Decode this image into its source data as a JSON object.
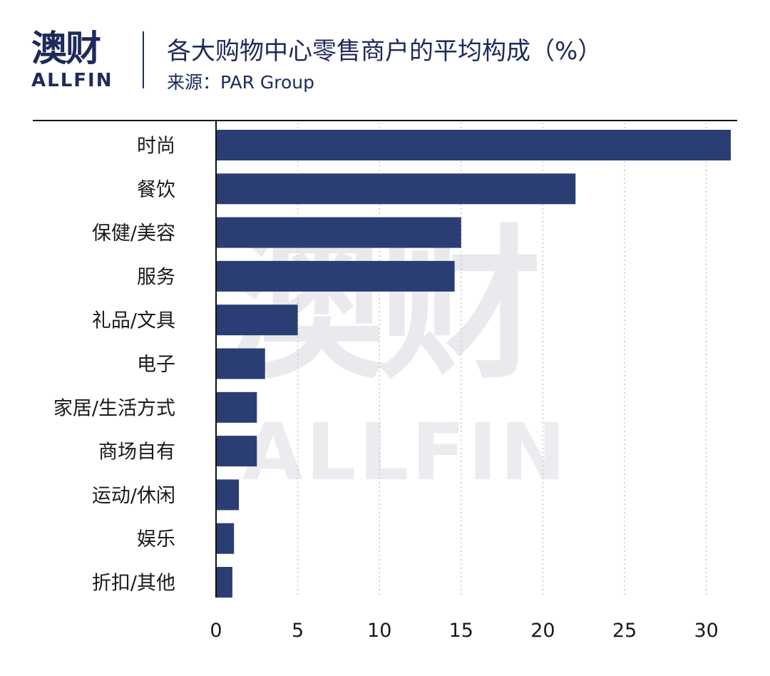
{
  "brand": {
    "name_cn": "澳财",
    "name_en": "ALLFIN",
    "primary_color": "#1e2a5a",
    "accent_color": "#d01a5b"
  },
  "header": {
    "title": "各大购物中心零售商户的平均构成（%）",
    "source": "来源：PAR Group"
  },
  "chart_data": {
    "type": "bar",
    "orientation": "horizontal",
    "title": "各大购物中心零售商户的平均构成（%）",
    "categories": [
      "时尚",
      "餐饮",
      "保健/美容",
      "服务",
      "礼品/文具",
      "电子",
      "家居/生活方式",
      "商场自有",
      "运动/休闲",
      "娱乐",
      "折扣/其他"
    ],
    "values": [
      31.5,
      22,
      15,
      14.6,
      5,
      3,
      2.5,
      2.5,
      1.4,
      1.1,
      1
    ],
    "xlim": [
      0,
      31.5
    ],
    "xticks": [
      "0",
      "5",
      "10",
      "15",
      "20",
      "25",
      "30"
    ],
    "xtick_values": [
      0,
      5,
      10,
      15,
      20,
      25,
      30
    ],
    "bar_color": "#2b3e73",
    "grid": "vertical dotted",
    "legend": "none"
  }
}
